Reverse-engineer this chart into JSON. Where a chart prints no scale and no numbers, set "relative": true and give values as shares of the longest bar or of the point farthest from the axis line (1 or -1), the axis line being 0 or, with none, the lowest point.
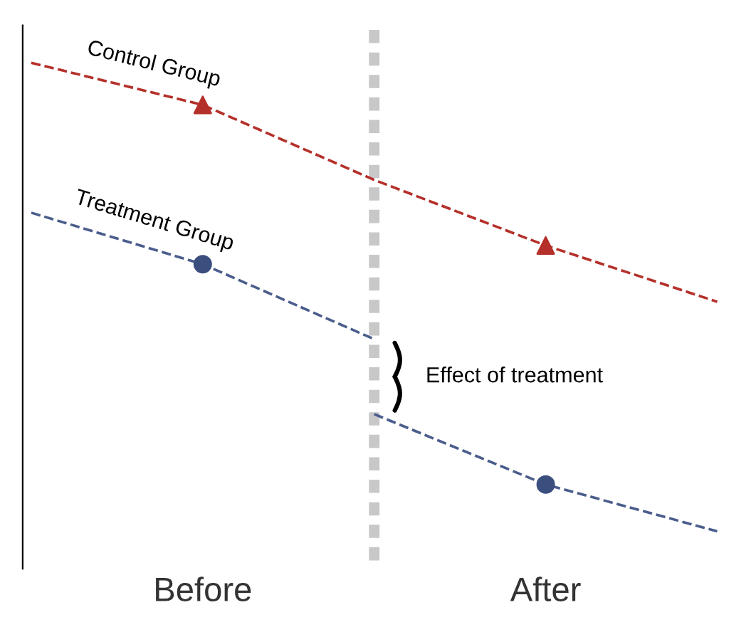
{
  "chart_data": {
    "type": "line",
    "relative": true,
    "categories": [
      null,
      "Before",
      null,
      "After",
      null
    ],
    "series": [
      {
        "name": "Control Group",
        "color": "#b5302a",
        "values": [
          1.0,
          0.91,
          0.75,
          0.61,
          0.49
        ]
      },
      {
        "type": "scatter",
        "marker": "triangle",
        "color": "#b5302a",
        "values": [
          null,
          0.91,
          null,
          0.61,
          null
        ]
      },
      {
        "name": "Treatment Group",
        "color": "#4a5d8c",
        "values": [
          0.68,
          0.57,
          0.41,
          null,
          null
        ]
      },
      {
        "color": "#4a5d8c",
        "values": [
          null,
          null,
          0.25,
          0.1,
          0.0
        ]
      },
      {
        "type": "scatter",
        "marker": "circle",
        "color": "#3b4f7f",
        "values": [
          null,
          0.57,
          null,
          0.1,
          null
        ]
      }
    ],
    "line_style": "dashed",
    "marker": "none",
    "grid": false,
    "legend": false,
    "tick_labels": "x",
    "annotations": [
      "Effect of treatment"
    ]
  }
}
